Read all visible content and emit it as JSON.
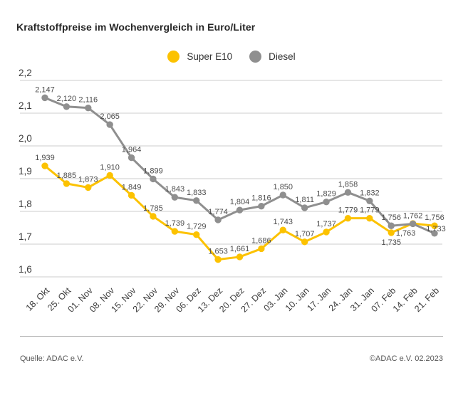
{
  "page": {
    "title": "Kraftstoffpreise im Wochenvergleich in Euro/Liter",
    "source_label": "Quelle: ADAC e.V.",
    "copyright_label": "©ADAC e.V. 02.2023"
  },
  "chart_data": {
    "type": "line",
    "title": "Kraftstoffpreise im Wochenvergleich in Euro/Liter",
    "unit": "Euro/Liter",
    "categories": [
      "18. Okt",
      "25. Okt",
      "01. Nov",
      "08. Nov",
      "15. Nov",
      "22. Nov",
      "29. Nov",
      "06. Dez",
      "13. Dez",
      "20. Dez",
      "27. Dez",
      "03. Jan",
      "10. Jan",
      "17. Jan",
      "24. Jan",
      "31. Jan",
      "07. Feb",
      "14. Feb",
      "21. Feb"
    ],
    "series": [
      {
        "name": "Super E10",
        "color": "#fcc200",
        "values": [
          1.939,
          1.885,
          1.873,
          1.91,
          1.849,
          1.785,
          1.739,
          1.729,
          1.653,
          1.661,
          1.686,
          1.743,
          1.707,
          1.737,
          1.779,
          1.779,
          1.735,
          1.763,
          1.756
        ],
        "label_offsets": {
          "16": [
            0,
            17
          ],
          "17": [
            -10,
            17
          ]
        }
      },
      {
        "name": "Diesel",
        "color": "#8f8f8f",
        "values": [
          2.147,
          2.12,
          2.116,
          2.065,
          1.964,
          1.899,
          1.843,
          1.833,
          1.774,
          1.804,
          1.816,
          1.85,
          1.811,
          1.829,
          1.858,
          1.832,
          1.756,
          1.762,
          1.733
        ],
        "label_offsets": {
          "18": [
            2,
            -3
          ]
        }
      }
    ],
    "ylim": [
      1.6,
      2.2
    ],
    "ytick_step": 0.1,
    "ytick_labels": [
      "2,2",
      "2,1",
      "2,0",
      "1,9",
      "1,8",
      "1,7",
      "1,6"
    ],
    "decimal_separator": ",",
    "value_labels": true,
    "grid": "horizontal",
    "legend_position": "top-center"
  },
  "colors": {
    "grid": "#cccccc",
    "axis_text": "#3d3d3d",
    "value_label_text": "#4d4d4d",
    "title_text": "#262626",
    "divider": "#b3b3b3",
    "footer_text": "#555555"
  }
}
